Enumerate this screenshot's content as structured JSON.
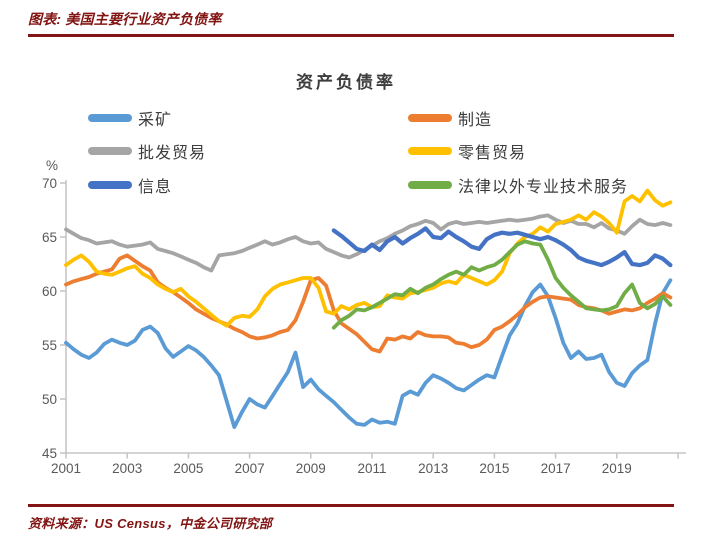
{
  "header": {
    "title": "图表: 美国主要行业资产负债率"
  },
  "footer": {
    "source": "资料来源：US Census，中金公司研究部"
  },
  "colors": {
    "accent_red": "#821513",
    "axis_line": "#c6c6c6",
    "tick_text": "#595959",
    "chart_text": "#3d3d3d",
    "background": "#ffffff"
  },
  "chart_data": {
    "type": "line",
    "title": "资产负债率",
    "unit_label": "%",
    "legend_position": "top",
    "grid": false,
    "x_axis": {
      "origin_year": 2001,
      "points_per_year": 4,
      "tick_marks": [
        2001,
        2003,
        2005,
        2007,
        2009,
        2011,
        2013,
        2015,
        2017,
        2019,
        2021
      ],
      "tick_labels": [
        "2001",
        "2003",
        "2005",
        "2007",
        "2009",
        "2011",
        "2013",
        "2015",
        "2017",
        "2019"
      ]
    },
    "y_axis": {
      "min": 45,
      "max": 70,
      "ticks": [
        45,
        50,
        55,
        60,
        65,
        70
      ]
    },
    "series": [
      {
        "name": "采矿",
        "color": "#5B9BD5",
        "start_year": 2001.0,
        "values": [
          55.2,
          54.6,
          54.1,
          53.8,
          54.3,
          55.1,
          55.5,
          55.2,
          55.0,
          55.4,
          56.4,
          56.7,
          56.1,
          54.7,
          53.9,
          54.4,
          54.9,
          54.5,
          53.9,
          53.1,
          52.2,
          49.8,
          47.4,
          48.8,
          50.0,
          49.5,
          49.2,
          50.3,
          51.4,
          52.5,
          54.3,
          51.1,
          51.8,
          50.9,
          50.3,
          49.7,
          49.0,
          48.3,
          47.7,
          47.6,
          48.1,
          47.8,
          47.9,
          47.7,
          50.3,
          50.7,
          50.4,
          51.5,
          52.2,
          51.9,
          51.5,
          51.0,
          50.8,
          51.3,
          51.8,
          52.2,
          52.0,
          54.0,
          55.9,
          57.0,
          58.6,
          59.9,
          60.6,
          59.5,
          57.5,
          55.2,
          53.8,
          54.4,
          53.7,
          53.8,
          54.1,
          52.5,
          51.5,
          51.2,
          52.4,
          53.1,
          53.6,
          57.0,
          59.8,
          61.0
        ]
      },
      {
        "name": "制造",
        "color": "#ED7D31",
        "start_year": 2001.0,
        "values": [
          60.6,
          60.9,
          61.1,
          61.3,
          61.6,
          61.8,
          62.0,
          63.0,
          63.3,
          62.8,
          62.3,
          61.9,
          60.8,
          60.3,
          59.9,
          59.4,
          58.9,
          58.3,
          57.9,
          57.5,
          57.2,
          56.9,
          56.5,
          56.2,
          55.8,
          55.6,
          55.7,
          55.9,
          56.2,
          56.4,
          57.3,
          59.0,
          61.0,
          61.2,
          60.5,
          58.2,
          57.0,
          56.5,
          56.0,
          55.3,
          54.6,
          54.4,
          55.6,
          55.5,
          55.8,
          55.6,
          56.2,
          55.9,
          55.8,
          55.8,
          55.7,
          55.2,
          55.1,
          54.8,
          55.0,
          55.5,
          56.4,
          56.7,
          57.2,
          57.8,
          58.5,
          59.0,
          59.4,
          59.5,
          59.4,
          59.3,
          59.2,
          58.7,
          58.5,
          58.4,
          58.2,
          57.9,
          58.1,
          58.3,
          58.2,
          58.4,
          58.9,
          59.3,
          59.8,
          59.4
        ]
      },
      {
        "name": "批发贸易",
        "color": "#A5A5A5",
        "start_year": 2001.0,
        "values": [
          65.7,
          65.3,
          64.9,
          64.7,
          64.4,
          64.5,
          64.6,
          64.3,
          64.1,
          64.2,
          64.3,
          64.5,
          63.9,
          63.7,
          63.5,
          63.2,
          62.9,
          62.6,
          62.2,
          61.9,
          63.3,
          63.4,
          63.5,
          63.7,
          64.0,
          64.3,
          64.6,
          64.3,
          64.5,
          64.8,
          65.0,
          64.6,
          64.4,
          64.5,
          63.9,
          63.6,
          63.3,
          63.1,
          63.4,
          63.8,
          64.2,
          64.6,
          64.9,
          65.3,
          65.6,
          66.0,
          66.2,
          66.5,
          66.3,
          65.7,
          66.2,
          66.4,
          66.2,
          66.3,
          66.4,
          66.3,
          66.4,
          66.5,
          66.6,
          66.5,
          66.6,
          66.7,
          66.9,
          67.0,
          66.6,
          66.3,
          66.5,
          66.2,
          66.2,
          65.9,
          66.3,
          65.8,
          65.6,
          65.3,
          66.0,
          66.6,
          66.2,
          66.1,
          66.3,
          66.1
        ]
      },
      {
        "name": "零售贸易",
        "color": "#FFC000",
        "start_year": 2001.0,
        "values": [
          62.4,
          62.9,
          63.3,
          62.7,
          61.8,
          61.6,
          61.5,
          61.8,
          62.1,
          62.3,
          61.6,
          61.2,
          60.6,
          60.2,
          59.9,
          60.2,
          59.5,
          59.0,
          58.4,
          57.8,
          57.2,
          56.8,
          57.5,
          57.7,
          57.6,
          58.3,
          59.5,
          60.2,
          60.6,
          60.8,
          61.0,
          61.2,
          61.2,
          60.3,
          58.1,
          57.9,
          58.6,
          58.3,
          58.7,
          58.9,
          58.5,
          58.6,
          59.6,
          59.4,
          59.3,
          59.8,
          59.9,
          60.1,
          60.3,
          60.7,
          60.9,
          60.7,
          61.5,
          61.2,
          60.9,
          60.6,
          61.0,
          61.8,
          63.5,
          64.4,
          65.0,
          65.3,
          65.9,
          65.5,
          66.2,
          66.4,
          66.6,
          67.0,
          66.6,
          67.3,
          66.9,
          66.3,
          65.4,
          68.3,
          68.8,
          68.3,
          69.3,
          68.4,
          67.9,
          68.2
        ]
      },
      {
        "name": "信息",
        "color": "#4472C4",
        "start_year": 2009.75,
        "values": [
          65.6,
          65.1,
          64.5,
          63.9,
          63.7,
          64.3,
          63.8,
          64.6,
          65.0,
          64.4,
          64.9,
          65.3,
          65.8,
          65.0,
          64.9,
          65.5,
          65.0,
          64.6,
          64.1,
          63.9,
          64.8,
          65.2,
          65.4,
          65.3,
          65.4,
          65.2,
          65.0,
          64.8,
          65.0,
          64.7,
          64.3,
          63.8,
          63.1,
          62.8,
          62.6,
          62.4,
          62.7,
          63.1,
          63.6,
          62.5,
          62.4,
          62.6,
          63.3,
          63.0,
          62.4
        ]
      },
      {
        "name": "法律以外专业技术服务",
        "color": "#70AD47",
        "start_year": 2009.75,
        "values": [
          56.6,
          57.3,
          57.7,
          58.3,
          58.2,
          58.5,
          58.9,
          59.3,
          59.7,
          59.6,
          60.2,
          59.8,
          60.3,
          60.6,
          61.1,
          61.5,
          61.8,
          61.5,
          62.2,
          61.9,
          62.2,
          62.4,
          62.9,
          63.6,
          64.3,
          64.6,
          64.4,
          64.3,
          62.9,
          61.2,
          60.3,
          59.6,
          59.0,
          58.4,
          58.3,
          58.2,
          58.3,
          58.6,
          59.8,
          60.6,
          58.9,
          58.4,
          58.8,
          59.5,
          58.7
        ]
      }
    ]
  }
}
